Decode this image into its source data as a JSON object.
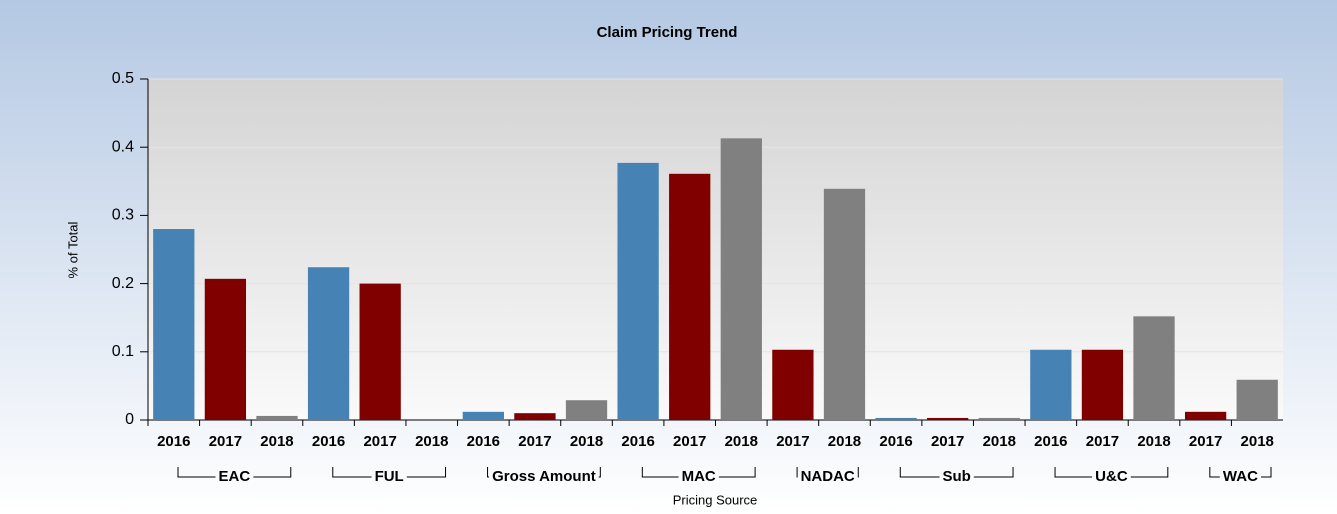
{
  "chart_data": {
    "type": "bar",
    "title": "Claim Pricing Trend",
    "xlabel": "Pricing Source",
    "ylabel": "% of Total",
    "colors": {
      "2016": "#4682b4",
      "2017": "#800000",
      "2018": "#808080"
    },
    "groups": [
      {
        "name": "EAC",
        "categories": [
          "2016",
          "2017",
          "2018"
        ],
        "values": [
          0.28,
          0.207,
          0.006
        ]
      },
      {
        "name": "FUL",
        "categories": [
          "2016",
          "2017",
          "2018"
        ],
        "values": [
          0.224,
          0.2,
          0
        ]
      },
      {
        "name": "Gross Amount",
        "categories": [
          "2016",
          "2017",
          "2018"
        ],
        "values": [
          0.012,
          0.01,
          0.029
        ]
      },
      {
        "name": "MAC",
        "categories": [
          "2016",
          "2017",
          "2018"
        ],
        "values": [
          0.377,
          0.361,
          0.413
        ]
      },
      {
        "name": "NADAC",
        "categories": [
          "2017",
          "2018"
        ],
        "values": [
          0.103,
          0.339
        ]
      },
      {
        "name": "Sub",
        "categories": [
          "2016",
          "2017",
          "2018"
        ],
        "values": [
          0.003,
          0.003,
          0.003
        ]
      },
      {
        "name": "U&C",
        "categories": [
          "2016",
          "2017",
          "2018"
        ],
        "values": [
          0.103,
          0.103,
          0.152
        ]
      },
      {
        "name": "WAC",
        "categories": [
          "2017",
          "2018"
        ],
        "values": [
          0.012,
          0.059
        ]
      }
    ],
    "ylim": [
      0,
      0.5
    ],
    "yticks": [
      0,
      0.1,
      0.2,
      0.3,
      0.4,
      0.5
    ],
    "grid": true
  }
}
